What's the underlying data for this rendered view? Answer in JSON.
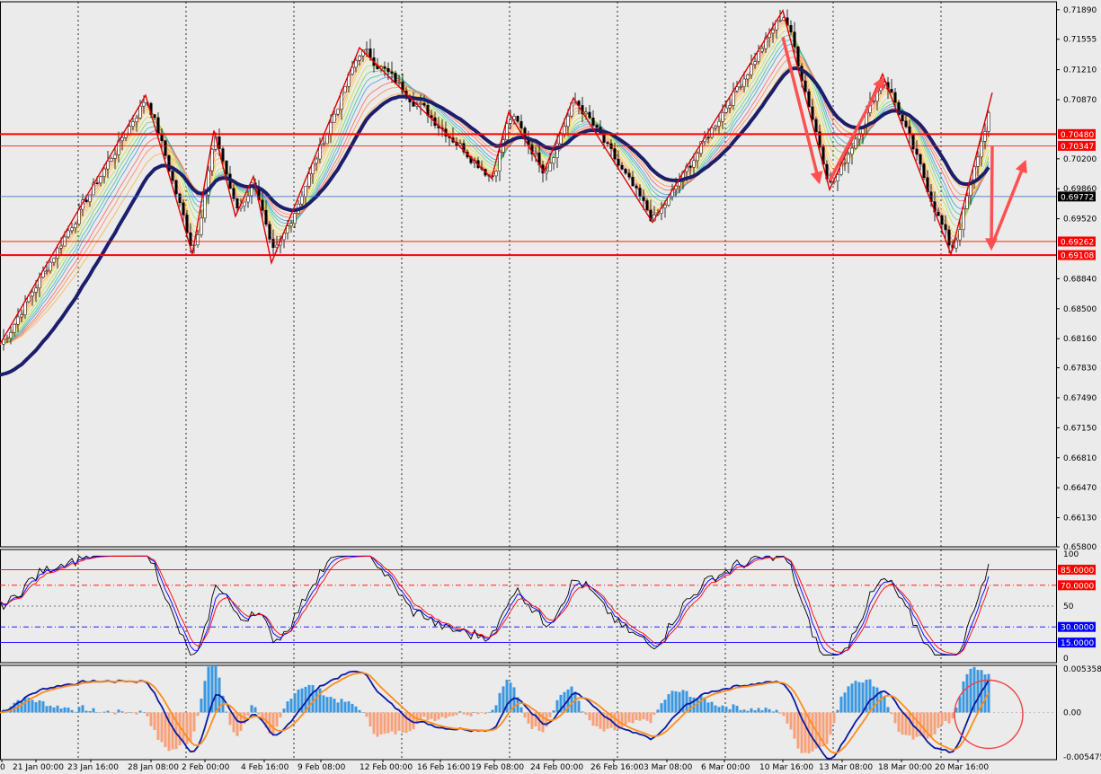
{
  "chart_data": [
    {
      "type": "candlestick",
      "panel": "price",
      "price_axis_ticks": [
        "0.71890",
        "0.71555",
        "0.71210",
        "0.70870",
        "0.70200",
        "0.69860",
        "0.69520",
        "0.68840",
        "0.68500",
        "0.68160",
        "0.67830",
        "0.67490",
        "0.67150",
        "0.66810",
        "0.66470",
        "0.66130",
        "0.65800"
      ],
      "price_axis_values": [
        0.7189,
        0.71555,
        0.7121,
        0.7087,
        0.702,
        0.6986,
        0.6952,
        0.6884,
        0.685,
        0.6816,
        0.6783,
        0.6749,
        0.6715,
        0.6681,
        0.6647,
        0.6613,
        0.658
      ],
      "ylim": [
        0.658,
        0.7198
      ],
      "horizontal_levels": [
        {
          "label": "0.70480",
          "value": 0.7048,
          "color": "#ff0000",
          "style": "thick"
        },
        {
          "label": "0.70347",
          "value": 0.70347,
          "color": "#ff0000",
          "style": "thin"
        },
        {
          "label": "0.69772",
          "value": 0.69772,
          "color": "#2a5fd6",
          "style": "thin",
          "current_price": true
        },
        {
          "label": "0.69262",
          "value": 0.69262,
          "color": "#ff0000",
          "style": "thin"
        },
        {
          "label": "0.69108",
          "value": 0.69108,
          "color": "#ff0000",
          "style": "thick"
        }
      ],
      "zigzag_pivots": [
        {
          "date": "19 Jan",
          "value": 0.681
        },
        {
          "date": "26 Jan",
          "value": 0.7092
        },
        {
          "date": "2 Feb",
          "value": 0.6912
        },
        {
          "date": "3 Feb",
          "value": 0.7052
        },
        {
          "date": "4 Feb",
          "value": 0.6955
        },
        {
          "date": "5 Feb",
          "value": 0.7
        },
        {
          "date": "6 Feb",
          "value": 0.6902
        },
        {
          "date": "12 Feb",
          "value": 0.7146
        },
        {
          "date": "19 Feb",
          "value": 0.6998
        },
        {
          "date": "22 Feb",
          "value": 0.7073
        },
        {
          "date": "25 Feb",
          "value": 0.7005
        },
        {
          "date": "26 Feb",
          "value": 0.7089
        },
        {
          "date": "1 Mar",
          "value": 0.6948
        },
        {
          "date": "10 Mar",
          "value": 0.7188
        },
        {
          "date": "13 Mar",
          "value": 0.6985
        },
        {
          "date": "17 Mar",
          "value": 0.7116
        },
        {
          "date": "19 Mar",
          "value": 0.6912
        },
        {
          "date": "20 Mar",
          "value": 0.7095
        }
      ],
      "arrows": [
        {
          "from": {
            "date": "10 Mar",
            "value": 0.7158
          },
          "to": {
            "date": "11 Mar",
            "value": 0.6995
          },
          "color": "#ff5050"
        },
        {
          "from": {
            "date": "13 Mar",
            "value": 0.6995
          },
          "to": {
            "date": "17 Mar",
            "value": 0.711
          },
          "color": "#ff5050"
        },
        {
          "from": {
            "date": "20 Mar",
            "value": 0.7035
          },
          "to": {
            "date": "21 Mar",
            "value": 0.692
          },
          "color": "#ff5050"
        },
        {
          "from": {
            "date": "21 Mar",
            "value": 0.692
          },
          "to": {
            "date": "22 Mar",
            "value": 0.7015
          },
          "color": "#ff5050"
        }
      ],
      "moving_average": {
        "color": "#1b1f6b",
        "period": "slow"
      },
      "ribbon": {
        "colors": [
          "#ff6060",
          "#ff8a50",
          "#ffb040",
          "#ffd040",
          "#c8e040",
          "#70d070",
          "#40c0a0",
          "#40a0e0"
        ]
      }
    },
    {
      "type": "line",
      "panel": "oscillator",
      "y_ticks": [
        "100",
        "50",
        "0"
      ],
      "y_tick_values": [
        100,
        50,
        0
      ],
      "levels": [
        {
          "label": "85.0000",
          "value": 85,
          "color": "#ff0000",
          "style": "solid"
        },
        {
          "label": "70.0000",
          "value": 70,
          "color": "#ff0000",
          "style": "dashdot"
        },
        {
          "label": "30.0000",
          "value": 30,
          "color": "#0000ff",
          "style": "dashdot"
        },
        {
          "label": "15.0000",
          "value": 15,
          "color": "#0000ff",
          "style": "solid"
        }
      ],
      "ylim": [
        0,
        100
      ],
      "series_colors": [
        "#000000",
        "#0000ff",
        "#ff0000"
      ]
    },
    {
      "type": "bar",
      "panel": "macd",
      "y_ticks": [
        "0.0053585",
        "0.00",
        "-0.005475"
      ],
      "y_tick_values": [
        0.0053585,
        0,
        -0.005475
      ],
      "ylim": [
        -0.0058,
        0.0058
      ],
      "histogram_colors": {
        "positive": "#3a97e0",
        "negative": "#f7a07a"
      },
      "line_colors": {
        "main": "#0a1a9f",
        "signal": "#ff8c1a"
      },
      "marker": {
        "type": "circle",
        "color": "#ee4444",
        "date": "21 Mar"
      }
    }
  ],
  "time_axis": [
    "0",
    "21 Jan 00:00",
    "23 Jan 16:00",
    "28 Jan 08:00",
    "2 Feb 00:00",
    "4 Feb 16:00",
    "9 Feb 08:00",
    "12 Feb 00:00",
    "16 Feb 16:00",
    "19 Feb 08:00",
    "24 Feb 00:00",
    "26 Feb 16:00",
    "3 Mar 08:00",
    "6 Mar 00:00",
    "10 Mar 16:00",
    "13 Mar 08:00",
    "18 Mar 00:00",
    "20 Mar 16:00"
  ],
  "colors": {
    "background": "#ebebeb",
    "frame": "#000000",
    "grid": "#000000"
  }
}
